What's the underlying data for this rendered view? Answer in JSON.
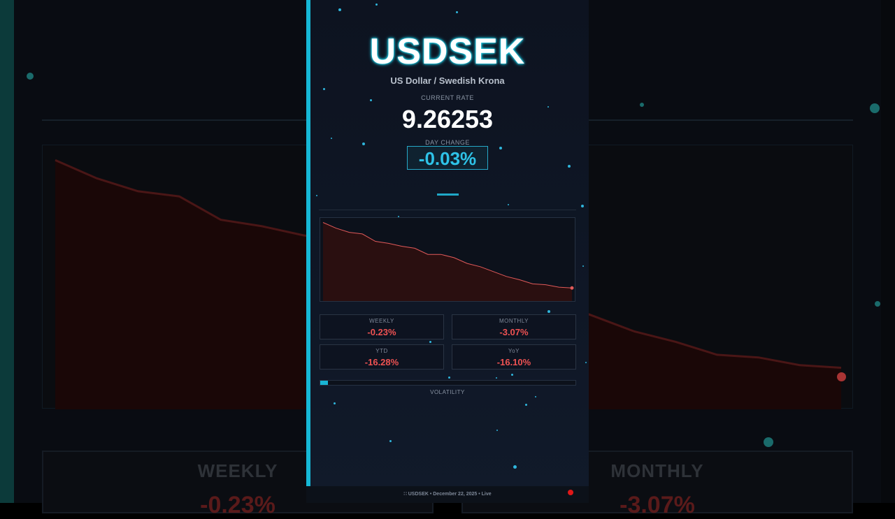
{
  "pair": {
    "symbol": "USDSEK",
    "name": "US Dollar / Swedish Krona"
  },
  "rate": {
    "label": "CURRENT RATE",
    "value": "9.26253"
  },
  "day_change": {
    "label": "DAY CHANGE",
    "value": "-0.03%"
  },
  "stats": [
    {
      "label": "WEEKLY",
      "value": "-0.23%"
    },
    {
      "label": "MONTHLY",
      "value": "-3.07%"
    },
    {
      "label": "YTD",
      "value": "-16.28%"
    },
    {
      "label": "YoY",
      "value": "-16.10%"
    }
  ],
  "volatility": {
    "label": "VOLATILITY",
    "level": 0.03
  },
  "footer": {
    "text": "∷ USDSEK  •  December 22, 2025  •  Live"
  },
  "background": {
    "stats": [
      {
        "label": "WEEKLY",
        "value": "-0.23%"
      },
      {
        "label": "MONTHLY",
        "value": "-3.07%"
      }
    ]
  },
  "colors": {
    "accent": "#16b8d6",
    "negative": "#ee5252",
    "chart_line": "#e05a5a",
    "chart_fill": "#2a0f10",
    "panel_bg": "#0d1320",
    "live": "#e01818"
  },
  "chart_data": {
    "type": "area",
    "x": [
      0,
      1,
      2,
      3,
      4,
      5,
      6,
      7,
      8,
      9,
      10,
      11,
      12,
      13,
      14,
      15,
      16,
      17,
      18,
      19
    ],
    "values": [
      10.8,
      10.66,
      10.56,
      10.52,
      10.34,
      10.29,
      10.22,
      10.17,
      10.02,
      10.02,
      9.94,
      9.8,
      9.72,
      9.6,
      9.48,
      9.4,
      9.3,
      9.28,
      9.22,
      9.2
    ],
    "ylim": [
      8.88,
      10.86
    ],
    "grid": false,
    "title": "",
    "xlabel": "",
    "ylabel": ""
  }
}
